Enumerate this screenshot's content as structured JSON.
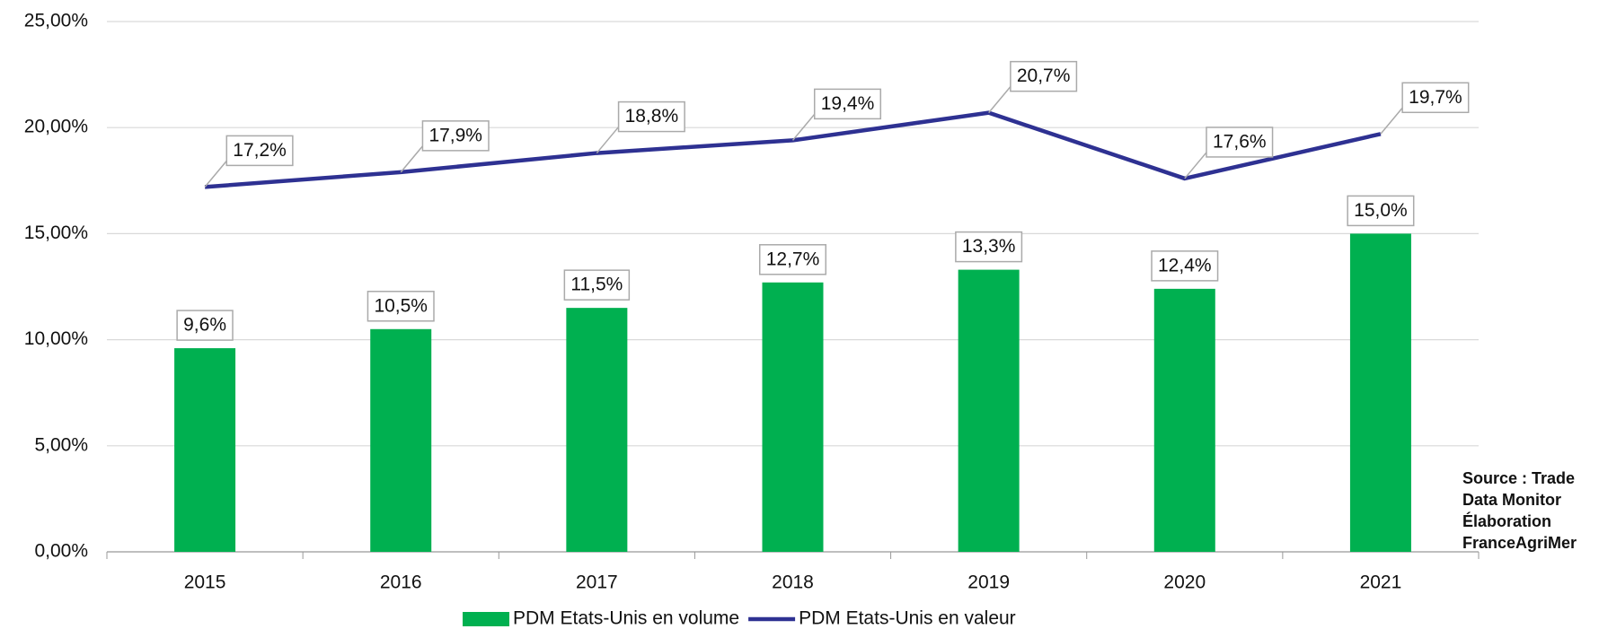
{
  "chart_data": {
    "type": "bar_line",
    "categories": [
      "2015",
      "2016",
      "2017",
      "2018",
      "2019",
      "2020",
      "2021"
    ],
    "series": [
      {
        "name": "PDM Etats-Unis en volume",
        "type": "bar",
        "color": "#00b050",
        "values": [
          9.6,
          10.5,
          11.5,
          12.7,
          13.3,
          12.4,
          15.0
        ],
        "value_labels": [
          "9,6%",
          "10,5%",
          "11,5%",
          "12,7%",
          "13,3%",
          "12,4%",
          "15,0%"
        ]
      },
      {
        "name": "PDM Etats-Unis en valeur",
        "type": "line",
        "color": "#2e3192",
        "values": [
          17.2,
          17.9,
          18.8,
          19.4,
          20.7,
          17.6,
          19.7
        ],
        "value_labels": [
          "17,2%",
          "17,9%",
          "18,8%",
          "19,4%",
          "20,7%",
          "17,6%",
          "19,7%"
        ]
      }
    ],
    "ylim": [
      0,
      25
    ],
    "yticks": [
      {
        "value": 0,
        "label": "0,00%"
      },
      {
        "value": 5,
        "label": "5,00%"
      },
      {
        "value": 10,
        "label": "10,00%"
      },
      {
        "value": 15,
        "label": "15,00%"
      },
      {
        "value": 20,
        "label": "20,00%"
      },
      {
        "value": 25,
        "label": "25,00%"
      }
    ],
    "grid": true,
    "legend": "bottom",
    "source": [
      "Source : Trade",
      "Data Monitor",
      "Élaboration",
      "FranceAgriMer"
    ]
  }
}
